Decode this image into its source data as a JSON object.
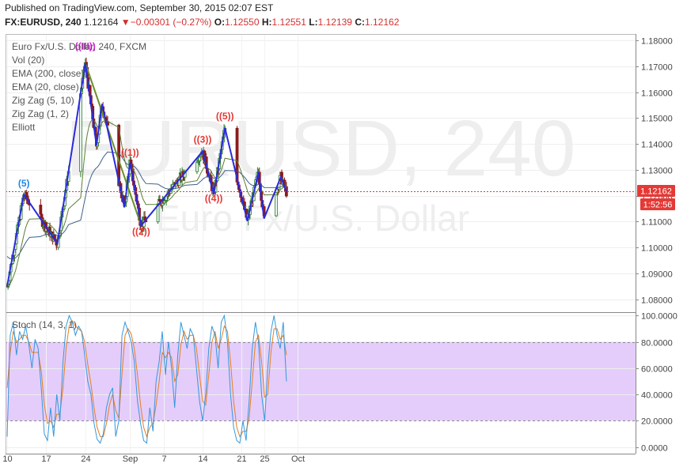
{
  "header": {
    "published": "Published on TradingView.com, September 30, 2015 02:07 EST",
    "symbol": "FX:EURUSD, 240",
    "last": "1.12164",
    "change": "−",
    "change_tail": "0.00301 (−0.27%)",
    "o_label": "O:",
    "o": "1.12550",
    "h_label": "H:",
    "h": "1.12551",
    "l_label": "L:",
    "l": "1.12139",
    "c_label": "C:",
    "c": "1.12162"
  },
  "legend": {
    "items": [
      "Euro Fx/U.S. Dollar, 240, FXCM",
      "Vol (20)",
      "EMA (200, close)",
      "EMA (20, close)",
      "Zig Zag (5, 10)",
      "Zig Zag (1, 2)",
      "Elliott"
    ]
  },
  "watermark": {
    "big": "EURUSD, 240",
    "small": "Euro Fx/U.S. Dollar"
  },
  "price_tags": {
    "last": "1.12162",
    "countdown": "1:52:56"
  },
  "stoch_label": "Stoch (14, 3, 1)",
  "colors": {
    "wave_blue": "#2a2add",
    "wave_green": "#6a8f2a",
    "label_magenta": "#d81fd8",
    "label_red": "#e53935",
    "label_blue": "#1e88e5",
    "stoch_band": "#e4cdfb",
    "stoch_k": "#3498db",
    "stoch_d": "#e67e22",
    "candle_up": "#2e7d32",
    "candle_down": "#8b1a1a",
    "ema20": "#5b7f32",
    "ema200": "#3f5f8a"
  },
  "chart_data": [
    {
      "type": "candlestick",
      "title": "Euro Fx/U.S. Dollar, 240, FXCM",
      "x_ticks": [
        "10",
        "17",
        "24",
        "Sep",
        "7",
        "14",
        "21",
        "25",
        "Oct"
      ],
      "y_ticks": [
        "1.18000",
        "1.17000",
        "1.16000",
        "1.15000",
        "1.14000",
        "1.13000",
        "1.12000",
        "1.11000",
        "1.10000",
        "1.09000",
        "1.08000"
      ],
      "ylim": [
        1.075,
        1.1825
      ],
      "series": [
        {
          "name": "Zig Zag (1, 2)",
          "points": [
            [
              "Aug 10",
              1.085
            ],
            [
              "Aug 13",
              1.1205
            ],
            [
              "Aug 19",
              1.1015
            ],
            [
              "Aug 24",
              1.1712
            ],
            [
              "Aug 26",
              1.1395
            ],
            [
              "Aug 27",
              1.1555
            ],
            [
              "Aug 31",
              1.1155
            ],
            [
              "Sep 1",
              1.1328
            ],
            [
              "Sep 3",
              1.1085
            ],
            [
              "Sep 14",
              1.1372
            ],
            [
              "Sep 16",
              1.1205
            ],
            [
              "Sep 18",
              1.1462
            ],
            [
              "Sep 22",
              1.1102
            ],
            [
              "Sep 24",
              1.1292
            ],
            [
              "Sep 25",
              1.1112
            ],
            [
              "Sep 28",
              1.1272
            ],
            [
              "Sep 29",
              1.1215
            ]
          ]
        },
        {
          "name": "Zig Zag (5, 10)",
          "points": [
            [
              "Aug 24",
              1.1712
            ],
            [
              "Sep 3",
              1.1085
            ]
          ]
        }
      ],
      "annotations": [
        {
          "text": "((III))",
          "x": "Aug 24",
          "y": 1.1765
        },
        {
          "text": "(5)",
          "x": "Aug 13",
          "y": 1.1235
        },
        {
          "text": "((1))",
          "x": "Sep 1",
          "y": 1.1355
        },
        {
          "text": "((2))",
          "x": "Sep 3",
          "y": 1.105
        },
        {
          "text": "((3))",
          "x": "Sep 14",
          "y": 1.1405
        },
        {
          "text": "((4))",
          "x": "Sep 16",
          "y": 1.1178
        },
        {
          "text": "((5))",
          "x": "Sep 18",
          "y": 1.1495
        }
      ],
      "last_price": 1.12162
    },
    {
      "type": "line",
      "title": "Stoch (14, 3, 1)",
      "y_ticks": [
        "100.0000",
        "80.0000",
        "60.0000",
        "40.0000",
        "20.0000",
        "0.0000"
      ],
      "ylim": [
        -5,
        102
      ],
      "band": [
        20,
        80
      ],
      "k": [
        8,
        85,
        95,
        70,
        88,
        82,
        92,
        78,
        60,
        82,
        75,
        45,
        10,
        5,
        30,
        8,
        40,
        20,
        65,
        92,
        100,
        95,
        85,
        92,
        88,
        70,
        50,
        40,
        18,
        6,
        3,
        10,
        30,
        40,
        45,
        8,
        20,
        85,
        95,
        88,
        80,
        65,
        35,
        18,
        5,
        3,
        30,
        12,
        50,
        65,
        88,
        55,
        80,
        60,
        30,
        70,
        95,
        85,
        75,
        90,
        85,
        60,
        35,
        20,
        40,
        75,
        92,
        85,
        60,
        95,
        100,
        80,
        40,
        15,
        5,
        3,
        20,
        5,
        35,
        75,
        95,
        80,
        40,
        20,
        60,
        88,
        100,
        85,
        75,
        95,
        50
      ],
      "d": [
        45,
        72,
        88,
        80,
        82,
        85,
        85,
        80,
        72,
        72,
        72,
        58,
        32,
        18,
        20,
        15,
        25,
        25,
        45,
        75,
        92,
        96,
        92,
        90,
        88,
        80,
        63,
        48,
        30,
        15,
        8,
        8,
        18,
        32,
        40,
        28,
        22,
        55,
        85,
        90,
        86,
        75,
        55,
        32,
        15,
        8,
        15,
        18,
        32,
        50,
        72,
        68,
        72,
        68,
        50,
        55,
        78,
        88,
        82,
        85,
        85,
        75,
        55,
        35,
        32,
        55,
        80,
        88,
        75,
        82,
        92,
        88,
        65,
        35,
        15,
        8,
        12,
        12,
        22,
        50,
        80,
        85,
        65,
        38,
        40,
        72,
        90,
        90,
        82,
        85,
        70
      ]
    }
  ]
}
